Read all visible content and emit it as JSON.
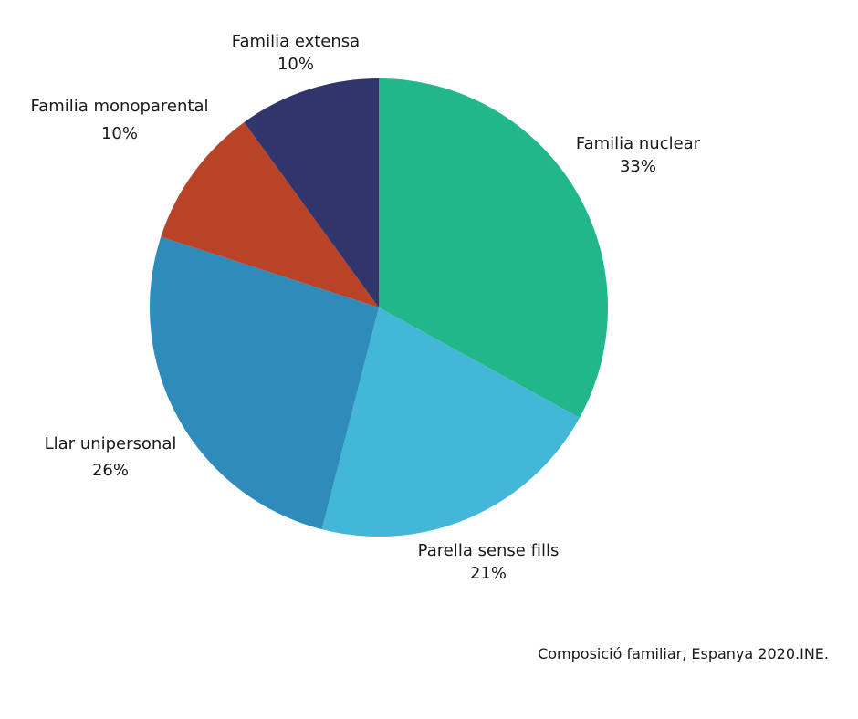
{
  "chart_data": {
    "type": "pie",
    "start_angle": "top",
    "direction": "clockwise",
    "slices": [
      {
        "label": "Familia nuclear",
        "value": 33,
        "value_label": "33%",
        "color": "#21B78B"
      },
      {
        "label": "Parella sense fills",
        "value": 21,
        "value_label": "21%",
        "color": "#42B7D8"
      },
      {
        "label": "Llar unipersonal",
        "value": 26,
        "value_label": "26%",
        "color": "#2E8BBA"
      },
      {
        "label": "Familia monoparental",
        "value": 10,
        "value_label": "10%",
        "color": "#B84327"
      },
      {
        "label": "Familia extensa",
        "value": 10,
        "value_label": "10%",
        "color": "#32356B"
      }
    ]
  },
  "source": "Composició familiar, Espanya 2020.INE."
}
